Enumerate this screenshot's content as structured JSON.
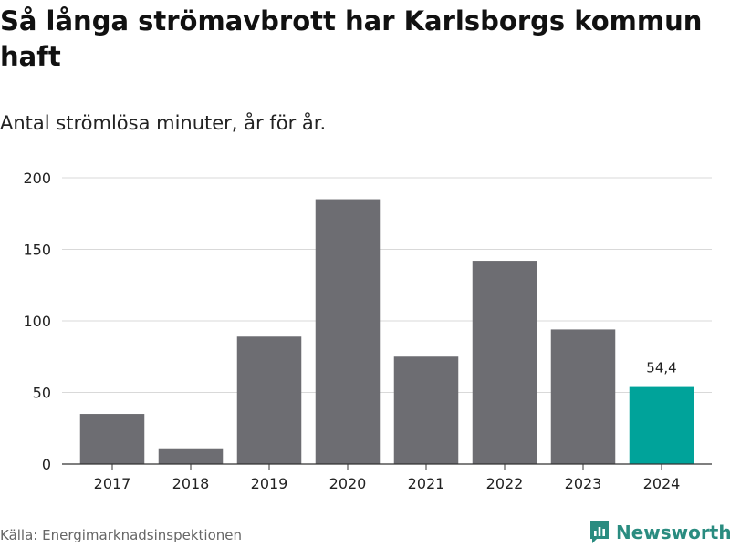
{
  "title": "Så långa strömavbrott har Karlsborgs kommun haft",
  "subtitle": "Antal strömlösa minuter, år för år.",
  "source": "Källa: Energimarknadsinspektionen",
  "brand": {
    "name": "Newsworthy",
    "icon": "newsworthy-logo-icon",
    "color": "#2a8c80"
  },
  "chart_data": {
    "type": "bar",
    "categories": [
      "2017",
      "2018",
      "2019",
      "2020",
      "2021",
      "2022",
      "2023",
      "2024"
    ],
    "values": [
      35,
      11,
      89,
      185,
      75,
      142,
      94,
      54.4
    ],
    "ylim": [
      0,
      200
    ],
    "yticks": [
      "0",
      "50",
      "100",
      "150",
      "200"
    ],
    "grid": true,
    "bar_color": "#6d6d72",
    "highlight_color": "#00a39a",
    "highlight_index": 7,
    "data_labels": [
      {
        "index": 7,
        "text": "54,4"
      }
    ]
  }
}
